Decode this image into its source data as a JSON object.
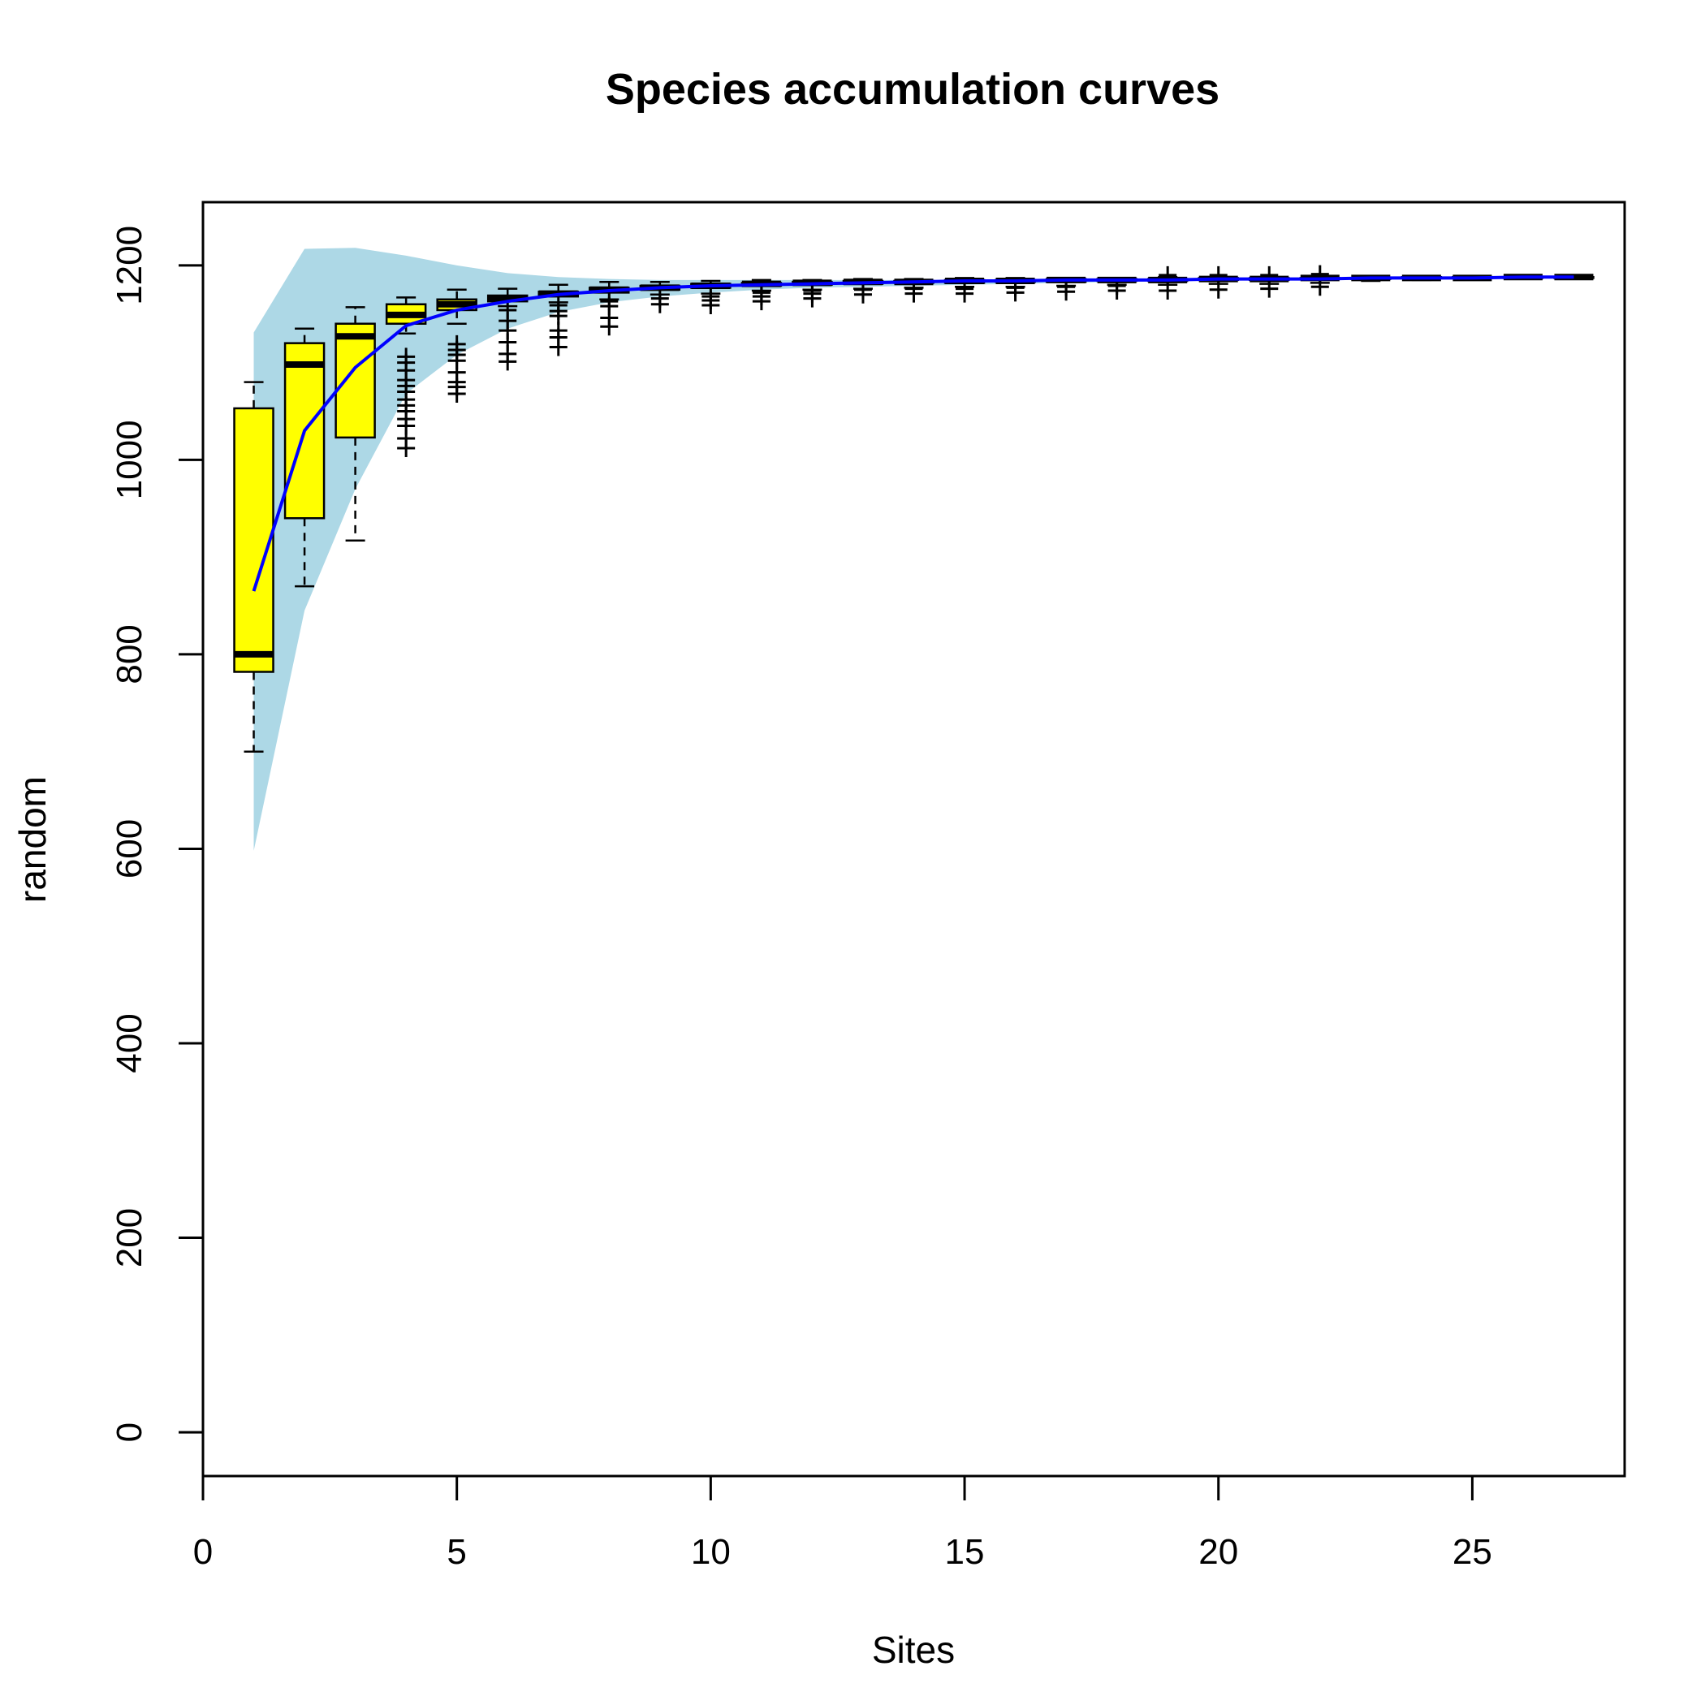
{
  "chart_data": {
    "type": "boxplot",
    "title": "Species accumulation curves",
    "xlabel": "Sites",
    "ylabel": "random",
    "xlim": [
      0,
      28
    ],
    "ylim": [
      -45,
      1265
    ],
    "x_ticks": [
      0,
      5,
      10,
      15,
      20,
      25
    ],
    "y_ticks": [
      0,
      200,
      400,
      600,
      800,
      1000,
      1200
    ],
    "grid": false,
    "colors": {
      "ci_band": "#add8e6",
      "mean_line": "#0000ff",
      "box_fill": "#ffff00",
      "outline": "#000000"
    },
    "confidence_band": {
      "x": [
        1,
        2,
        3,
        4,
        5,
        6,
        7,
        8,
        9,
        10,
        11,
        12,
        13,
        14,
        15,
        16,
        17,
        18,
        19,
        20,
        21,
        22,
        23,
        24,
        25,
        26,
        27
      ],
      "upper": [
        1131,
        1217,
        1218,
        1210,
        1200,
        1192,
        1188,
        1186,
        1185,
        1185,
        1185,
        1185,
        1185,
        1185,
        1185,
        1185,
        1186,
        1186,
        1186,
        1187,
        1187,
        1187,
        1187,
        1188,
        1188,
        1188,
        1188
      ],
      "lower": [
        598,
        845,
        970,
        1068,
        1108,
        1135,
        1152,
        1162,
        1168,
        1172,
        1175,
        1177,
        1178,
        1179,
        1180,
        1181,
        1182,
        1183,
        1184,
        1184,
        1185,
        1185,
        1186,
        1186,
        1187,
        1187,
        1187
      ]
    },
    "mean_curve": {
      "x": [
        1,
        2,
        3,
        4,
        5,
        6,
        7,
        8,
        9,
        10,
        11,
        12,
        13,
        14,
        15,
        16,
        17,
        18,
        19,
        20,
        21,
        22,
        23,
        24,
        25,
        26,
        27
      ],
      "y": [
        865,
        1030,
        1095,
        1138,
        1154,
        1163,
        1170,
        1174,
        1177,
        1179,
        1180,
        1181,
        1182,
        1183,
        1184,
        1184,
        1185,
        1185,
        1185,
        1186,
        1186,
        1186,
        1187,
        1187,
        1187,
        1188,
        1188
      ]
    },
    "boxes": [
      {
        "x": 1,
        "low": 700,
        "q1": 782,
        "median": 800,
        "q3": 1053,
        "high": 1080,
        "outliers": []
      },
      {
        "x": 2,
        "low": 870,
        "q1": 940,
        "median": 1098,
        "q3": 1120,
        "high": 1135,
        "outliers": []
      },
      {
        "x": 3,
        "low": 917,
        "q1": 1023,
        "median": 1127,
        "q3": 1140,
        "high": 1157,
        "outliers": []
      },
      {
        "x": 4,
        "low": 1130,
        "q1": 1140,
        "median": 1149,
        "q3": 1160,
        "high": 1167,
        "outliers": [
          1012,
          1022,
          1035,
          1042,
          1050,
          1056,
          1062,
          1070,
          1076,
          1082,
          1092,
          1100,
          1106
        ]
      },
      {
        "x": 5,
        "low": 1140,
        "q1": 1154,
        "median": 1160,
        "q3": 1165,
        "high": 1175,
        "outliers": [
          1068,
          1075,
          1080,
          1090,
          1102,
          1108,
          1113,
          1119
        ]
      },
      {
        "x": 6,
        "low": 1158,
        "q1": 1163,
        "median": 1166,
        "q3": 1169,
        "high": 1176,
        "outliers": [
          1101,
          1109,
          1121,
          1133,
          1143,
          1154
        ]
      },
      {
        "x": 7,
        "low": 1162,
        "q1": 1168,
        "median": 1171,
        "q3": 1173,
        "high": 1180,
        "outliers": [
          1116,
          1126,
          1133,
          1148,
          1153,
          1159
        ]
      },
      {
        "x": 8,
        "low": 1165,
        "q1": 1172,
        "median": 1175,
        "q3": 1177,
        "high": 1183,
        "outliers": [
          1137,
          1146,
          1158,
          1163
        ]
      },
      {
        "x": 9,
        "low": 1170,
        "q1": 1175,
        "median": 1177,
        "q3": 1179,
        "high": 1183,
        "outliers": [
          1160,
          1166
        ]
      },
      {
        "x": 10,
        "low": 1171,
        "q1": 1177,
        "median": 1179,
        "q3": 1181,
        "high": 1184,
        "outliers": [
          1159,
          1164,
          1168
        ]
      },
      {
        "x": 11,
        "low": 1174,
        "q1": 1179,
        "median": 1181,
        "q3": 1182,
        "high": 1185,
        "outliers": [
          1163,
          1168,
          1172
        ]
      },
      {
        "x": 12,
        "low": 1175,
        "q1": 1180,
        "median": 1182,
        "q3": 1183,
        "high": 1185,
        "outliers": [
          1166,
          1171,
          1174
        ]
      },
      {
        "x": 13,
        "low": 1176,
        "q1": 1181,
        "median": 1183,
        "q3": 1184,
        "high": 1186,
        "outliers": [
          1170,
          1175
        ]
      },
      {
        "x": 14,
        "low": 1177,
        "q1": 1182,
        "median": 1183,
        "q3": 1184,
        "high": 1186,
        "outliers": [
          1171,
          1176
        ]
      },
      {
        "x": 15,
        "low": 1178,
        "q1": 1182,
        "median": 1184,
        "q3": 1185,
        "high": 1187,
        "outliers": [
          1171,
          1176
        ]
      },
      {
        "x": 16,
        "low": 1178,
        "q1": 1183,
        "median": 1184,
        "q3": 1185,
        "high": 1187,
        "outliers": [
          1172,
          1177
        ]
      },
      {
        "x": 17,
        "low": 1179,
        "q1": 1183,
        "median": 1185,
        "q3": 1186,
        "high": 1187,
        "outliers": [
          1173,
          1178
        ]
      },
      {
        "x": 18,
        "low": 1180,
        "q1": 1184,
        "median": 1185,
        "q3": 1186,
        "high": 1187,
        "outliers": [
          1174,
          1179
        ]
      },
      {
        "x": 19,
        "low": 1180,
        "q1": 1184,
        "median": 1185,
        "q3": 1186,
        "high": 1188,
        "outliers": [
          1174,
          1190
        ]
      },
      {
        "x": 20,
        "low": 1181,
        "q1": 1185,
        "median": 1186,
        "q3": 1187,
        "high": 1188,
        "outliers": [
          1175,
          1190
        ]
      },
      {
        "x": 21,
        "low": 1181,
        "q1": 1185,
        "median": 1186,
        "q3": 1187,
        "high": 1188,
        "outliers": [
          1176,
          1190
        ]
      },
      {
        "x": 22,
        "low": 1182,
        "q1": 1186,
        "median": 1187,
        "q3": 1187,
        "high": 1188,
        "outliers": [
          1178,
          1191
        ]
      },
      {
        "x": 23,
        "low": 1184,
        "q1": 1186,
        "median": 1187,
        "q3": 1187,
        "high": 1188,
        "outliers": []
      },
      {
        "x": 24,
        "low": 1185,
        "q1": 1187,
        "median": 1187,
        "q3": 1188,
        "high": 1188,
        "outliers": []
      },
      {
        "x": 25,
        "low": 1186,
        "q1": 1187,
        "median": 1187,
        "q3": 1188,
        "high": 1188,
        "outliers": []
      },
      {
        "x": 26,
        "low": 1186,
        "q1": 1187,
        "median": 1188,
        "q3": 1188,
        "high": 1188,
        "outliers": []
      },
      {
        "x": 27,
        "low": 1187,
        "q1": 1187,
        "median": 1188,
        "q3": 1188,
        "high": 1188,
        "outliers": []
      }
    ]
  }
}
